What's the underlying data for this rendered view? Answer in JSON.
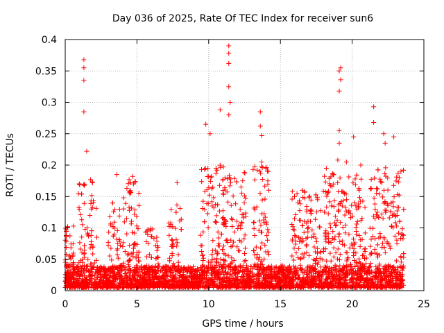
{
  "chart_data": {
    "type": "scatter",
    "title": "Day 036 of 2025, Rate Of TEC Index for receiver sun6",
    "xlabel": "GPS time / hours",
    "ylabel": "ROTI / TECUs",
    "xlim": [
      0,
      25
    ],
    "ylim": [
      0,
      0.4
    ],
    "x_ticks": [
      0,
      5,
      10,
      15,
      20,
      25
    ],
    "x_tick_labels": [
      "0",
      "5",
      "10",
      "15",
      "20",
      "25"
    ],
    "y_ticks": [
      0,
      0.05,
      0.1,
      0.15,
      0.2,
      0.25,
      0.3,
      0.35,
      0.4
    ],
    "y_tick_labels": [
      "0",
      "0.05",
      "0.1",
      "0.15",
      "0.2",
      "0.25",
      "0.3",
      "0.35",
      "0.4"
    ],
    "grid": true,
    "marker": "+",
    "color": "#ff0000",
    "x_data_range": [
      0,
      23.6
    ],
    "notable_peaks": [
      {
        "x": 1.3,
        "y": 0.368
      },
      {
        "x": 1.3,
        "y": 0.355
      },
      {
        "x": 1.3,
        "y": 0.335
      },
      {
        "x": 1.3,
        "y": 0.285
      },
      {
        "x": 1.5,
        "y": 0.222
      },
      {
        "x": 3.6,
        "y": 0.185
      },
      {
        "x": 4.7,
        "y": 0.182
      },
      {
        "x": 7.8,
        "y": 0.172
      },
      {
        "x": 9.8,
        "y": 0.265
      },
      {
        "x": 10.1,
        "y": 0.25
      },
      {
        "x": 10.8,
        "y": 0.288
      },
      {
        "x": 11.4,
        "y": 0.39
      },
      {
        "x": 11.4,
        "y": 0.378
      },
      {
        "x": 11.4,
        "y": 0.362
      },
      {
        "x": 11.4,
        "y": 0.325
      },
      {
        "x": 11.5,
        "y": 0.3
      },
      {
        "x": 11.4,
        "y": 0.28
      },
      {
        "x": 13.6,
        "y": 0.285
      },
      {
        "x": 13.6,
        "y": 0.262
      },
      {
        "x": 13.7,
        "y": 0.247
      },
      {
        "x": 13.7,
        "y": 0.205
      },
      {
        "x": 18.2,
        "y": 0.195
      },
      {
        "x": 19.0,
        "y": 0.208
      },
      {
        "x": 19.2,
        "y": 0.355
      },
      {
        "x": 19.1,
        "y": 0.35
      },
      {
        "x": 19.2,
        "y": 0.336
      },
      {
        "x": 19.1,
        "y": 0.318
      },
      {
        "x": 19.1,
        "y": 0.255
      },
      {
        "x": 19.1,
        "y": 0.235
      },
      {
        "x": 19.6,
        "y": 0.205
      },
      {
        "x": 20.1,
        "y": 0.245
      },
      {
        "x": 20.6,
        "y": 0.2
      },
      {
        "x": 21.5,
        "y": 0.293
      },
      {
        "x": 21.5,
        "y": 0.268
      },
      {
        "x": 22.2,
        "y": 0.25
      },
      {
        "x": 22.3,
        "y": 0.235
      },
      {
        "x": 22.9,
        "y": 0.245
      },
      {
        "x": 23.4,
        "y": 0.19
      },
      {
        "x": 23.1,
        "y": 0.181
      }
    ],
    "activity_bursts": [
      {
        "x_start": 0.0,
        "x_end": 0.6,
        "peak": 0.12
      },
      {
        "x_start": 0.9,
        "x_end": 2.2,
        "peak": 0.18
      },
      {
        "x_start": 3.0,
        "x_end": 3.9,
        "peak": 0.14
      },
      {
        "x_start": 4.0,
        "x_end": 5.2,
        "peak": 0.18
      },
      {
        "x_start": 5.6,
        "x_end": 6.5,
        "peak": 0.1
      },
      {
        "x_start": 7.2,
        "x_end": 8.1,
        "peak": 0.14
      },
      {
        "x_start": 9.4,
        "x_end": 12.6,
        "peak": 0.2
      },
      {
        "x_start": 13.0,
        "x_end": 14.2,
        "peak": 0.2
      },
      {
        "x_start": 15.8,
        "x_end": 18.0,
        "peak": 0.16
      },
      {
        "x_start": 18.0,
        "x_end": 21.0,
        "peak": 0.19
      },
      {
        "x_start": 21.2,
        "x_end": 23.6,
        "peak": 0.2
      }
    ]
  }
}
